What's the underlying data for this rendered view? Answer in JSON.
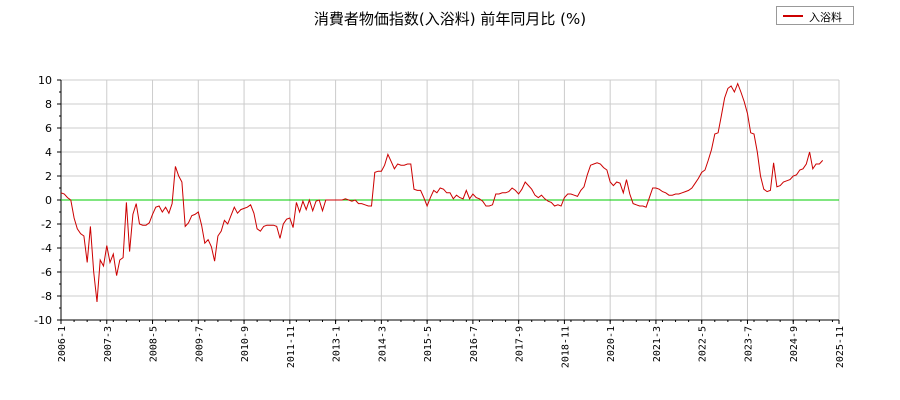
{
  "chart_data": {
    "type": "line",
    "title": "消費者物価指数(入浴料) 前年同月比 (%)",
    "xlabel": "",
    "ylabel": "",
    "ylim": [
      -10,
      10
    ],
    "yticks": [
      10,
      8,
      6,
      4,
      2,
      0,
      -2,
      -4,
      -6,
      -8,
      -10
    ],
    "xlim": [
      "2006-01",
      "2025-11"
    ],
    "xticks": [
      "2006-1",
      "2007-3",
      "2008-5",
      "2009-7",
      "2010-9",
      "2011-11",
      "2013-1",
      "2014-3",
      "2015-5",
      "2016-7",
      "2017-9",
      "2018-11",
      "2020-1",
      "2021-3",
      "2022-5",
      "2023-7",
      "2024-9",
      "2025-11"
    ],
    "grid": true,
    "legend": "top-right",
    "colors": {
      "series": "#cc0000",
      "zero_line": "#00cc00",
      "grid": "#cccccc",
      "axis": "#000000"
    },
    "series": [
      {
        "name": "入浴料",
        "points": [
          [
            "2006-01",
            0.6
          ],
          [
            "2006-02",
            0.5
          ],
          [
            "2006-03",
            0.2
          ],
          [
            "2006-04",
            0.0
          ],
          [
            "2006-05",
            -1.5
          ],
          [
            "2006-06",
            -2.4
          ],
          [
            "2006-07",
            -2.8
          ],
          [
            "2006-08",
            -3.0
          ],
          [
            "2006-09",
            -5.2
          ],
          [
            "2006-10",
            -2.2
          ],
          [
            "2006-11",
            -6.0
          ],
          [
            "2006-12",
            -8.5
          ],
          [
            "2007-01",
            -5.0
          ],
          [
            "2007-02",
            -5.5
          ],
          [
            "2007-03",
            -3.8
          ],
          [
            "2007-04",
            -5.2
          ],
          [
            "2007-05",
            -4.5
          ],
          [
            "2007-06",
            -6.3
          ],
          [
            "2007-07",
            -5.0
          ],
          [
            "2007-08",
            -4.8
          ],
          [
            "2007-09",
            -0.2
          ],
          [
            "2007-10",
            -4.3
          ],
          [
            "2007-11",
            -1.2
          ],
          [
            "2007-12",
            -0.3
          ],
          [
            "2008-01",
            -2.0
          ],
          [
            "2008-02",
            -2.1
          ],
          [
            "2008-03",
            -2.1
          ],
          [
            "2008-04",
            -1.9
          ],
          [
            "2008-05",
            -1.2
          ],
          [
            "2008-06",
            -0.6
          ],
          [
            "2008-07",
            -0.5
          ],
          [
            "2008-08",
            -1.0
          ],
          [
            "2008-09",
            -0.6
          ],
          [
            "2008-10",
            -1.1
          ],
          [
            "2008-11",
            -0.3
          ],
          [
            "2008-12",
            2.8
          ],
          [
            "2009-01",
            2.0
          ],
          [
            "2009-02",
            1.5
          ],
          [
            "2009-03",
            -2.2
          ],
          [
            "2009-04",
            -1.9
          ],
          [
            "2009-05",
            -1.3
          ],
          [
            "2009-06",
            -1.2
          ],
          [
            "2009-07",
            -1.0
          ],
          [
            "2009-08",
            -2.1
          ],
          [
            "2009-09",
            -3.6
          ],
          [
            "2009-10",
            -3.3
          ],
          [
            "2009-11",
            -3.9
          ],
          [
            "2009-12",
            -5.1
          ],
          [
            "2010-01",
            -3.0
          ],
          [
            "2010-02",
            -2.6
          ],
          [
            "2010-03",
            -1.7
          ],
          [
            "2010-04",
            -2.0
          ],
          [
            "2010-05",
            -1.3
          ],
          [
            "2010-06",
            -0.6
          ],
          [
            "2010-07",
            -1.1
          ],
          [
            "2010-08",
            -0.8
          ],
          [
            "2010-09",
            -0.7
          ],
          [
            "2010-10",
            -0.6
          ],
          [
            "2010-11",
            -0.4
          ],
          [
            "2010-12",
            -1.1
          ],
          [
            "2011-01",
            -2.4
          ],
          [
            "2011-02",
            -2.6
          ],
          [
            "2011-03",
            -2.2
          ],
          [
            "2011-04",
            -2.1
          ],
          [
            "2011-05",
            -2.1
          ],
          [
            "2011-06",
            -2.1
          ],
          [
            "2011-07",
            -2.2
          ],
          [
            "2011-08",
            -3.2
          ],
          [
            "2011-09",
            -2.0
          ],
          [
            "2011-10",
            -1.6
          ],
          [
            "2011-11",
            -1.5
          ],
          [
            "2011-12",
            -2.3
          ],
          [
            "2012-01",
            -0.2
          ],
          [
            "2012-02",
            -1.0
          ],
          [
            "2012-03",
            -0.1
          ],
          [
            "2012-04",
            -0.8
          ],
          [
            "2012-05",
            0.0
          ],
          [
            "2012-06",
            -0.9
          ],
          [
            "2012-07",
            -0.1
          ],
          [
            "2012-08",
            0.0
          ],
          [
            "2012-09",
            -0.9
          ],
          [
            "2012-10",
            0.0
          ],
          [
            "2012-11",
            0.0
          ],
          [
            "2012-12",
            0.0
          ],
          [
            "2013-01",
            0.0
          ],
          [
            "2013-02",
            0.0
          ],
          [
            "2013-03",
            0.0
          ],
          [
            "2013-04",
            0.1
          ],
          [
            "2013-05",
            0.0
          ],
          [
            "2013-06",
            -0.1
          ],
          [
            "2013-07",
            0.0
          ],
          [
            "2013-08",
            -0.3
          ],
          [
            "2013-09",
            -0.3
          ],
          [
            "2013-10",
            -0.4
          ],
          [
            "2013-11",
            -0.5
          ],
          [
            "2013-12",
            -0.5
          ],
          [
            "2014-01",
            2.3
          ],
          [
            "2014-02",
            2.4
          ],
          [
            "2014-03",
            2.4
          ],
          [
            "2014-04",
            2.9
          ],
          [
            "2014-05",
            3.8
          ],
          [
            "2014-06",
            3.2
          ],
          [
            "2014-07",
            2.6
          ],
          [
            "2014-08",
            3.0
          ],
          [
            "2014-09",
            2.9
          ],
          [
            "2014-10",
            2.9
          ],
          [
            "2014-11",
            3.0
          ],
          [
            "2014-12",
            3.0
          ],
          [
            "2015-01",
            0.9
          ],
          [
            "2015-02",
            0.8
          ],
          [
            "2015-03",
            0.8
          ],
          [
            "2015-04",
            0.2
          ],
          [
            "2015-05",
            -0.5
          ],
          [
            "2015-06",
            0.2
          ],
          [
            "2015-07",
            0.8
          ],
          [
            "2015-08",
            0.6
          ],
          [
            "2015-09",
            1.0
          ],
          [
            "2015-10",
            0.9
          ],
          [
            "2015-11",
            0.6
          ],
          [
            "2015-12",
            0.6
          ],
          [
            "2016-01",
            0.1
          ],
          [
            "2016-02",
            0.4
          ],
          [
            "2016-03",
            0.2
          ],
          [
            "2016-04",
            0.1
          ],
          [
            "2016-05",
            0.8
          ],
          [
            "2016-06",
            0.1
          ],
          [
            "2016-07",
            0.5
          ],
          [
            "2016-08",
            0.2
          ],
          [
            "2016-09",
            0.1
          ],
          [
            "2016-10",
            -0.1
          ],
          [
            "2016-11",
            -0.5
          ],
          [
            "2016-12",
            -0.5
          ],
          [
            "2017-01",
            -0.4
          ],
          [
            "2017-02",
            0.5
          ],
          [
            "2017-03",
            0.5
          ],
          [
            "2017-04",
            0.6
          ],
          [
            "2017-05",
            0.6
          ],
          [
            "2017-06",
            0.7
          ],
          [
            "2017-07",
            1.0
          ],
          [
            "2017-08",
            0.8
          ],
          [
            "2017-09",
            0.5
          ],
          [
            "2017-10",
            0.9
          ],
          [
            "2017-11",
            1.5
          ],
          [
            "2017-12",
            1.2
          ],
          [
            "2018-01",
            0.9
          ],
          [
            "2018-02",
            0.4
          ],
          [
            "2018-03",
            0.2
          ],
          [
            "2018-04",
            0.4
          ],
          [
            "2018-05",
            0.1
          ],
          [
            "2018-06",
            -0.1
          ],
          [
            "2018-07",
            -0.2
          ],
          [
            "2018-08",
            -0.5
          ],
          [
            "2018-09",
            -0.4
          ],
          [
            "2018-10",
            -0.5
          ],
          [
            "2018-11",
            0.2
          ],
          [
            "2018-12",
            0.5
          ],
          [
            "2019-01",
            0.5
          ],
          [
            "2019-02",
            0.4
          ],
          [
            "2019-03",
            0.3
          ],
          [
            "2019-04",
            0.8
          ],
          [
            "2019-05",
            1.1
          ],
          [
            "2019-06",
            2.1
          ],
          [
            "2019-07",
            2.9
          ],
          [
            "2019-08",
            3.0
          ],
          [
            "2019-09",
            3.1
          ],
          [
            "2019-10",
            3.0
          ],
          [
            "2019-11",
            2.7
          ],
          [
            "2019-12",
            2.5
          ],
          [
            "2020-01",
            1.5
          ],
          [
            "2020-02",
            1.2
          ],
          [
            "2020-03",
            1.5
          ],
          [
            "2020-04",
            1.4
          ],
          [
            "2020-05",
            0.6
          ],
          [
            "2020-06",
            1.7
          ],
          [
            "2020-07",
            0.5
          ],
          [
            "2020-08",
            -0.3
          ],
          [
            "2020-09",
            -0.4
          ],
          [
            "2020-10",
            -0.5
          ],
          [
            "2020-11",
            -0.5
          ],
          [
            "2020-12",
            -0.6
          ],
          [
            "2021-01",
            0.2
          ],
          [
            "2021-02",
            1.0
          ],
          [
            "2021-03",
            1.0
          ],
          [
            "2021-04",
            0.9
          ],
          [
            "2021-05",
            0.7
          ],
          [
            "2021-06",
            0.6
          ],
          [
            "2021-07",
            0.4
          ],
          [
            "2021-08",
            0.4
          ],
          [
            "2021-09",
            0.5
          ],
          [
            "2021-10",
            0.5
          ],
          [
            "2021-11",
            0.6
          ],
          [
            "2021-12",
            0.7
          ],
          [
            "2022-01",
            0.8
          ],
          [
            "2022-02",
            1.0
          ],
          [
            "2022-03",
            1.4
          ],
          [
            "2022-04",
            1.8
          ],
          [
            "2022-05",
            2.3
          ],
          [
            "2022-06",
            2.5
          ],
          [
            "2022-07",
            3.3
          ],
          [
            "2022-08",
            4.2
          ],
          [
            "2022-09",
            5.5
          ],
          [
            "2022-10",
            5.6
          ],
          [
            "2022-11",
            7.0
          ],
          [
            "2022-12",
            8.5
          ],
          [
            "2023-01",
            9.3
          ],
          [
            "2023-02",
            9.5
          ],
          [
            "2023-03",
            9.0
          ],
          [
            "2023-04",
            9.7
          ],
          [
            "2023-05",
            9.0
          ],
          [
            "2023-06",
            8.2
          ],
          [
            "2023-07",
            7.2
          ],
          [
            "2023-08",
            5.6
          ],
          [
            "2023-09",
            5.5
          ],
          [
            "2023-10",
            4.0
          ],
          [
            "2023-11",
            2.0
          ],
          [
            "2023-12",
            0.9
          ],
          [
            "2024-01",
            0.7
          ],
          [
            "2024-02",
            0.8
          ],
          [
            "2024-03",
            3.1
          ],
          [
            "2024-04",
            1.1
          ],
          [
            "2024-05",
            1.2
          ],
          [
            "2024-06",
            1.5
          ],
          [
            "2024-07",
            1.6
          ],
          [
            "2024-08",
            1.7
          ],
          [
            "2024-09",
            2.0
          ],
          [
            "2024-10",
            2.1
          ],
          [
            "2024-11",
            2.5
          ],
          [
            "2024-12",
            2.6
          ],
          [
            "2025-01",
            3.0
          ],
          [
            "2025-02",
            4.0
          ],
          [
            "2025-03",
            2.6
          ],
          [
            "2025-04",
            3.0
          ],
          [
            "2025-05",
            3.0
          ],
          [
            "2025-06",
            3.3
          ]
        ]
      }
    ]
  }
}
